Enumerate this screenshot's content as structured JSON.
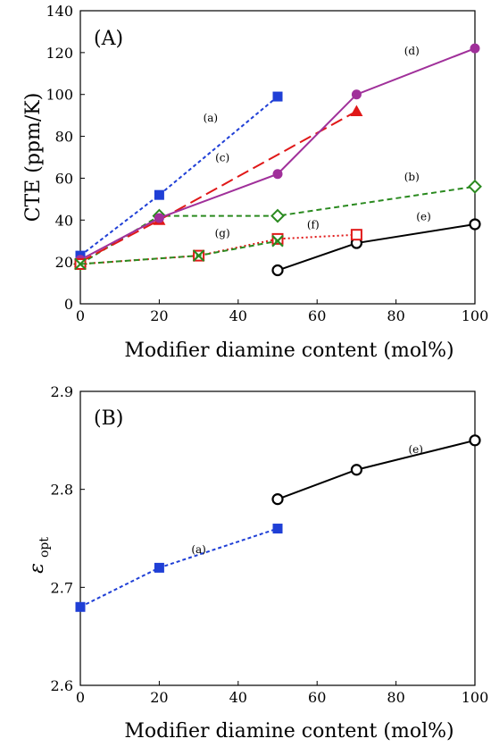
{
  "chart_data": [
    {
      "type": "line",
      "panel_label": "(A)",
      "xlabel": "Modifier diamine content (mol%)",
      "ylabel": "CTE (ppm/K)",
      "xlim": [
        0,
        100
      ],
      "ylim": [
        0,
        140
      ],
      "xticks": [
        "0",
        "20",
        "40",
        "60",
        "80",
        "100"
      ],
      "yticks": [
        "0",
        "20",
        "40",
        "60",
        "80",
        "100",
        "120",
        "140"
      ],
      "grid": false,
      "series": [
        {
          "name": "(a)",
          "color": "#1f3fd6",
          "dash": "dotted-dash",
          "marker": "filled-square",
          "x": [
            0,
            20,
            50
          ],
          "y": [
            23,
            52,
            99
          ],
          "label_at": [
            33,
            87
          ]
        },
        {
          "name": "(b)",
          "color": "#2a8a1f",
          "dash": "dash",
          "marker": "open-diamond",
          "x": [
            0,
            20,
            50,
            100
          ],
          "y": [
            19,
            42,
            42,
            56
          ],
          "label_at": [
            84,
            59
          ]
        },
        {
          "name": "(c)",
          "color": "#e01818",
          "dash": "long-dash",
          "marker": "filled-triangle",
          "x": [
            0,
            20,
            70
          ],
          "y": [
            20,
            40,
            92
          ],
          "label_at": [
            36,
            68
          ]
        },
        {
          "name": "(d)",
          "color": "#a0309a",
          "dash": "solid",
          "marker": "filled-circle",
          "x": [
            0,
            20,
            50,
            70,
            100
          ],
          "y": [
            21,
            41,
            62,
            100,
            122
          ],
          "label_at": [
            84,
            119
          ]
        },
        {
          "name": "(e)",
          "color": "#000000",
          "dash": "solid",
          "marker": "open-circle",
          "x": [
            50,
            70,
            100
          ],
          "y": [
            16,
            29,
            38
          ],
          "label_at": [
            87,
            40
          ]
        },
        {
          "name": "(f)",
          "color": "#e01818",
          "dash": "dot",
          "marker": "open-square",
          "x": [
            0,
            30,
            50,
            70
          ],
          "y": [
            19,
            23,
            31,
            33
          ],
          "label_at": [
            59,
            36
          ]
        },
        {
          "name": "(g)",
          "color": "#2a8a1f",
          "dash": "dash",
          "marker": "x-cross",
          "x": [
            0,
            30,
            50
          ],
          "y": [
            19,
            23,
            30
          ],
          "label_at": [
            36,
            32
          ]
        }
      ]
    },
    {
      "type": "line",
      "panel_label": "(B)",
      "xlabel": "Modifier diamine content (mol%)",
      "ylabel": "ε",
      "ylabel_sub": "opt",
      "xlim": [
        0,
        100
      ],
      "ylim": [
        2.6,
        2.9
      ],
      "xticks": [
        "0",
        "20",
        "40",
        "60",
        "80",
        "100"
      ],
      "yticks": [
        "2.6",
        "2.7",
        "2.8",
        "2.9"
      ],
      "grid": false,
      "series": [
        {
          "name": "(a)",
          "color": "#1f3fd6",
          "dash": "dotted-dash",
          "marker": "filled-square",
          "x": [
            0,
            20,
            50
          ],
          "y": [
            2.68,
            2.72,
            2.76
          ],
          "label_at": [
            30,
            2.735
          ]
        },
        {
          "name": "(e)",
          "color": "#000000",
          "dash": "solid",
          "marker": "open-circle",
          "x": [
            50,
            70,
            100
          ],
          "y": [
            2.79,
            2.82,
            2.85
          ],
          "label_at": [
            85,
            2.837
          ]
        }
      ]
    }
  ]
}
